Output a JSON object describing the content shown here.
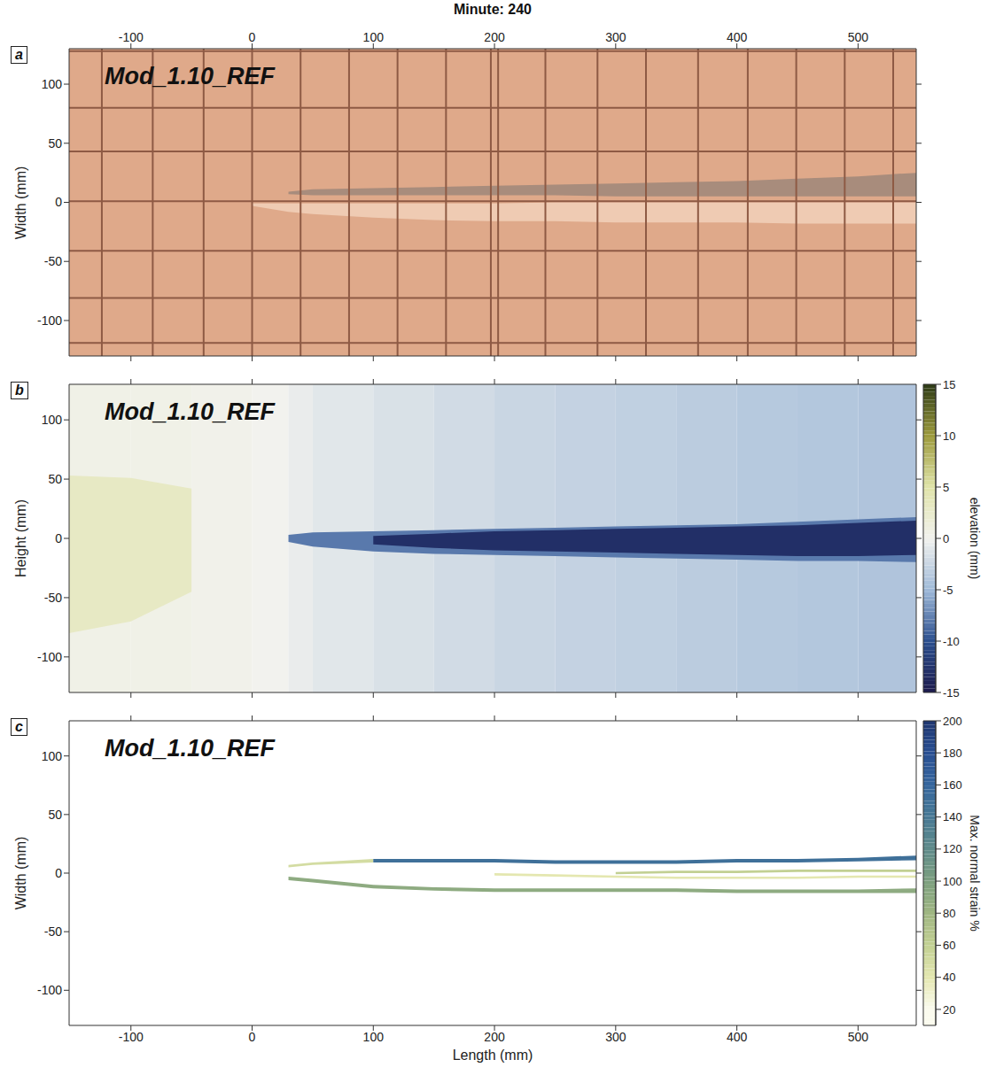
{
  "chart_data": [
    {
      "type": "image",
      "panel_label": "a",
      "title": "Minute: 240",
      "annotation": "Mod_1.10_REF",
      "y_label": "Width (mm)",
      "xlim": [
        -151,
        548
      ],
      "xticks": [
        -100,
        0,
        100,
        200,
        300,
        400,
        500
      ],
      "ylim": [
        -130,
        130
      ],
      "yticks": [
        -100,
        -50,
        0,
        50,
        100
      ],
      "tick_labels": true,
      "background": {
        "color": "#dfa98a"
      },
      "marker_lines": {
        "color": "#8e5a44",
        "x": [
          -124,
          -82,
          -40,
          0,
          40,
          80,
          120,
          160,
          197,
          203,
          242,
          285,
          325,
          368,
          409,
          449,
          489,
          529
        ],
        "y": [
          128,
          80,
          43,
          1,
          -41,
          -81,
          -119
        ]
      },
      "x": [
        -151,
        -100,
        -50,
        0,
        30,
        50,
        100,
        150,
        200,
        250,
        300,
        350,
        400,
        450,
        500,
        548
      ],
      "bands": [
        {
          "color": "#a88c7c",
          "low": [
            null,
            null,
            null,
            null,
            7,
            6,
            6,
            6,
            6,
            6,
            5,
            5,
            5,
            5,
            5,
            5
          ],
          "high": [
            null,
            null,
            null,
            null,
            9,
            11,
            12,
            13,
            14,
            15,
            16,
            17,
            18,
            20,
            22,
            25
          ]
        },
        {
          "color": "#efcbb3",
          "low": [
            null,
            null,
            null,
            -3,
            -8,
            -10,
            -13,
            -15,
            -16,
            -16,
            -17,
            -17,
            -17,
            -18,
            -18,
            -18
          ],
          "high": [
            null,
            null,
            null,
            -1,
            -1,
            -1,
            -1,
            -1,
            -1,
            0,
            0,
            0,
            0,
            0,
            0,
            0
          ]
        }
      ]
    },
    {
      "type": "heatmap",
      "panel_label": "b",
      "annotation": "Mod_1.10_REF",
      "y_label": "Height (mm)",
      "xlim": [
        -151,
        548
      ],
      "xticks": [
        -100,
        0,
        100,
        200,
        300,
        400,
        500
      ],
      "ylim": [
        -130,
        130
      ],
      "yticks": [
        -100,
        -50,
        0,
        50,
        100
      ],
      "tick_labels": "y",
      "colorbar": {
        "label": "elevation (mm)",
        "range": [
          -15,
          15
        ],
        "ticks": [
          -15,
          -10,
          -5,
          0,
          5,
          10,
          15
        ],
        "colors": [
          "#1c1a4d",
          "#2b4f8e",
          "#9fb9d8",
          "#f2f2ee",
          "#dfe3a8",
          "#9c9a3c",
          "#2d3a16"
        ]
      },
      "background": {
        "bins": [
          -151,
          -100,
          -50,
          0,
          30,
          50,
          100,
          150,
          200,
          250,
          300,
          350,
          400,
          450,
          500,
          548
        ],
        "values": [
          0.5,
          0.5,
          0.3,
          0,
          -0.5,
          -1,
          -1.5,
          -2,
          -2.5,
          -2.8,
          -3,
          -3.3,
          -3.6,
          -3.8,
          -4
        ]
      },
      "x": [
        -151,
        -100,
        -50,
        0,
        30,
        50,
        100,
        150,
        200,
        250,
        300,
        350,
        400,
        450,
        500,
        548
      ],
      "bands": [
        {
          "value": 3,
          "low": [
            -80,
            -70,
            -45,
            null,
            null,
            null,
            null,
            null,
            null,
            null,
            null,
            null,
            null,
            null,
            null,
            null
          ],
          "high": [
            53,
            51,
            42,
            null,
            null,
            null,
            null,
            null,
            null,
            null,
            null,
            null,
            null,
            null,
            null,
            null
          ]
        },
        {
          "value": -8,
          "low": [
            null,
            null,
            null,
            null,
            -3,
            -7,
            -11,
            -13,
            -14,
            -15,
            -16,
            -17,
            -18,
            -19,
            -19,
            -20
          ],
          "high": [
            null,
            null,
            null,
            null,
            3,
            5,
            6,
            7,
            8,
            9,
            10,
            11,
            12,
            14,
            16,
            18
          ]
        },
        {
          "value": -13,
          "low": [
            null,
            null,
            null,
            null,
            null,
            null,
            -5,
            -8,
            -10,
            -11,
            -12,
            -13,
            -14,
            -15,
            -15,
            -14
          ],
          "high": [
            null,
            null,
            null,
            null,
            null,
            null,
            2,
            4,
            6,
            7,
            8,
            9,
            10,
            11,
            13,
            15
          ]
        }
      ]
    },
    {
      "type": "heatmap",
      "panel_label": "c",
      "annotation": "Mod_1.10_REF",
      "y_label": "Width (mm)",
      "x_label": "Length (mm)",
      "xlim": [
        -151,
        548
      ],
      "xticks": [
        -100,
        0,
        100,
        200,
        300,
        400,
        500
      ],
      "ylim": [
        -130,
        130
      ],
      "yticks": [
        -100,
        -50,
        0,
        50,
        100
      ],
      "tick_labels": true,
      "colorbar": {
        "label": "Max. normal strain %",
        "range": [
          10,
          200
        ],
        "ticks": [
          20,
          40,
          60,
          80,
          100,
          120,
          140,
          160,
          180,
          200
        ],
        "colors": [
          "#fbfbee",
          "#e4e7b0",
          "#c2d093",
          "#9fb682",
          "#7c9f7f",
          "#5f8a8a",
          "#487994",
          "#36669d",
          "#294f92",
          "#1e356f"
        ]
      },
      "x": [
        -151,
        -100,
        -50,
        0,
        30,
        50,
        100,
        150,
        200,
        250,
        300,
        350,
        400,
        450,
        500,
        548
      ],
      "bands": [
        {
          "value": 50,
          "low": [
            null,
            null,
            null,
            null,
            5,
            7,
            9,
            null,
            null,
            null,
            null,
            null,
            null,
            null,
            null,
            null
          ],
          "high": [
            null,
            null,
            null,
            null,
            7,
            9,
            12,
            null,
            null,
            null,
            null,
            null,
            null,
            null,
            null,
            null
          ]
        },
        {
          "value": 150,
          "low": [
            null,
            null,
            null,
            null,
            null,
            null,
            9,
            9,
            9,
            8,
            8,
            8,
            9,
            9,
            10,
            11
          ],
          "high": [
            null,
            null,
            null,
            null,
            null,
            null,
            12,
            12,
            12,
            11,
            11,
            11,
            12,
            12,
            13,
            15
          ]
        },
        {
          "value": 90,
          "low": [
            null,
            null,
            null,
            null,
            -6,
            -8,
            -13,
            -15,
            -16,
            -16,
            -16,
            -16,
            -17,
            -17,
            -17,
            -17
          ],
          "high": [
            null,
            null,
            null,
            null,
            -3,
            -5,
            -10,
            -12,
            -13,
            -13,
            -13,
            -13,
            -14,
            -14,
            -14,
            -13
          ]
        },
        {
          "value": 40,
          "low": [
            null,
            null,
            null,
            null,
            null,
            null,
            null,
            null,
            -2,
            -3,
            -4,
            -5,
            -5,
            -5,
            -4,
            -4
          ],
          "high": [
            null,
            null,
            null,
            null,
            null,
            null,
            null,
            null,
            0,
            -1,
            -2,
            -3,
            -3,
            -3,
            -2,
            -2
          ]
        },
        {
          "value": 60,
          "low": [
            null,
            null,
            null,
            null,
            null,
            null,
            null,
            null,
            null,
            null,
            -1,
            0,
            0,
            1,
            1,
            1
          ],
          "high": [
            null,
            null,
            null,
            null,
            null,
            null,
            null,
            null,
            null,
            null,
            1,
            2,
            2,
            3,
            3,
            3
          ]
        }
      ]
    }
  ]
}
